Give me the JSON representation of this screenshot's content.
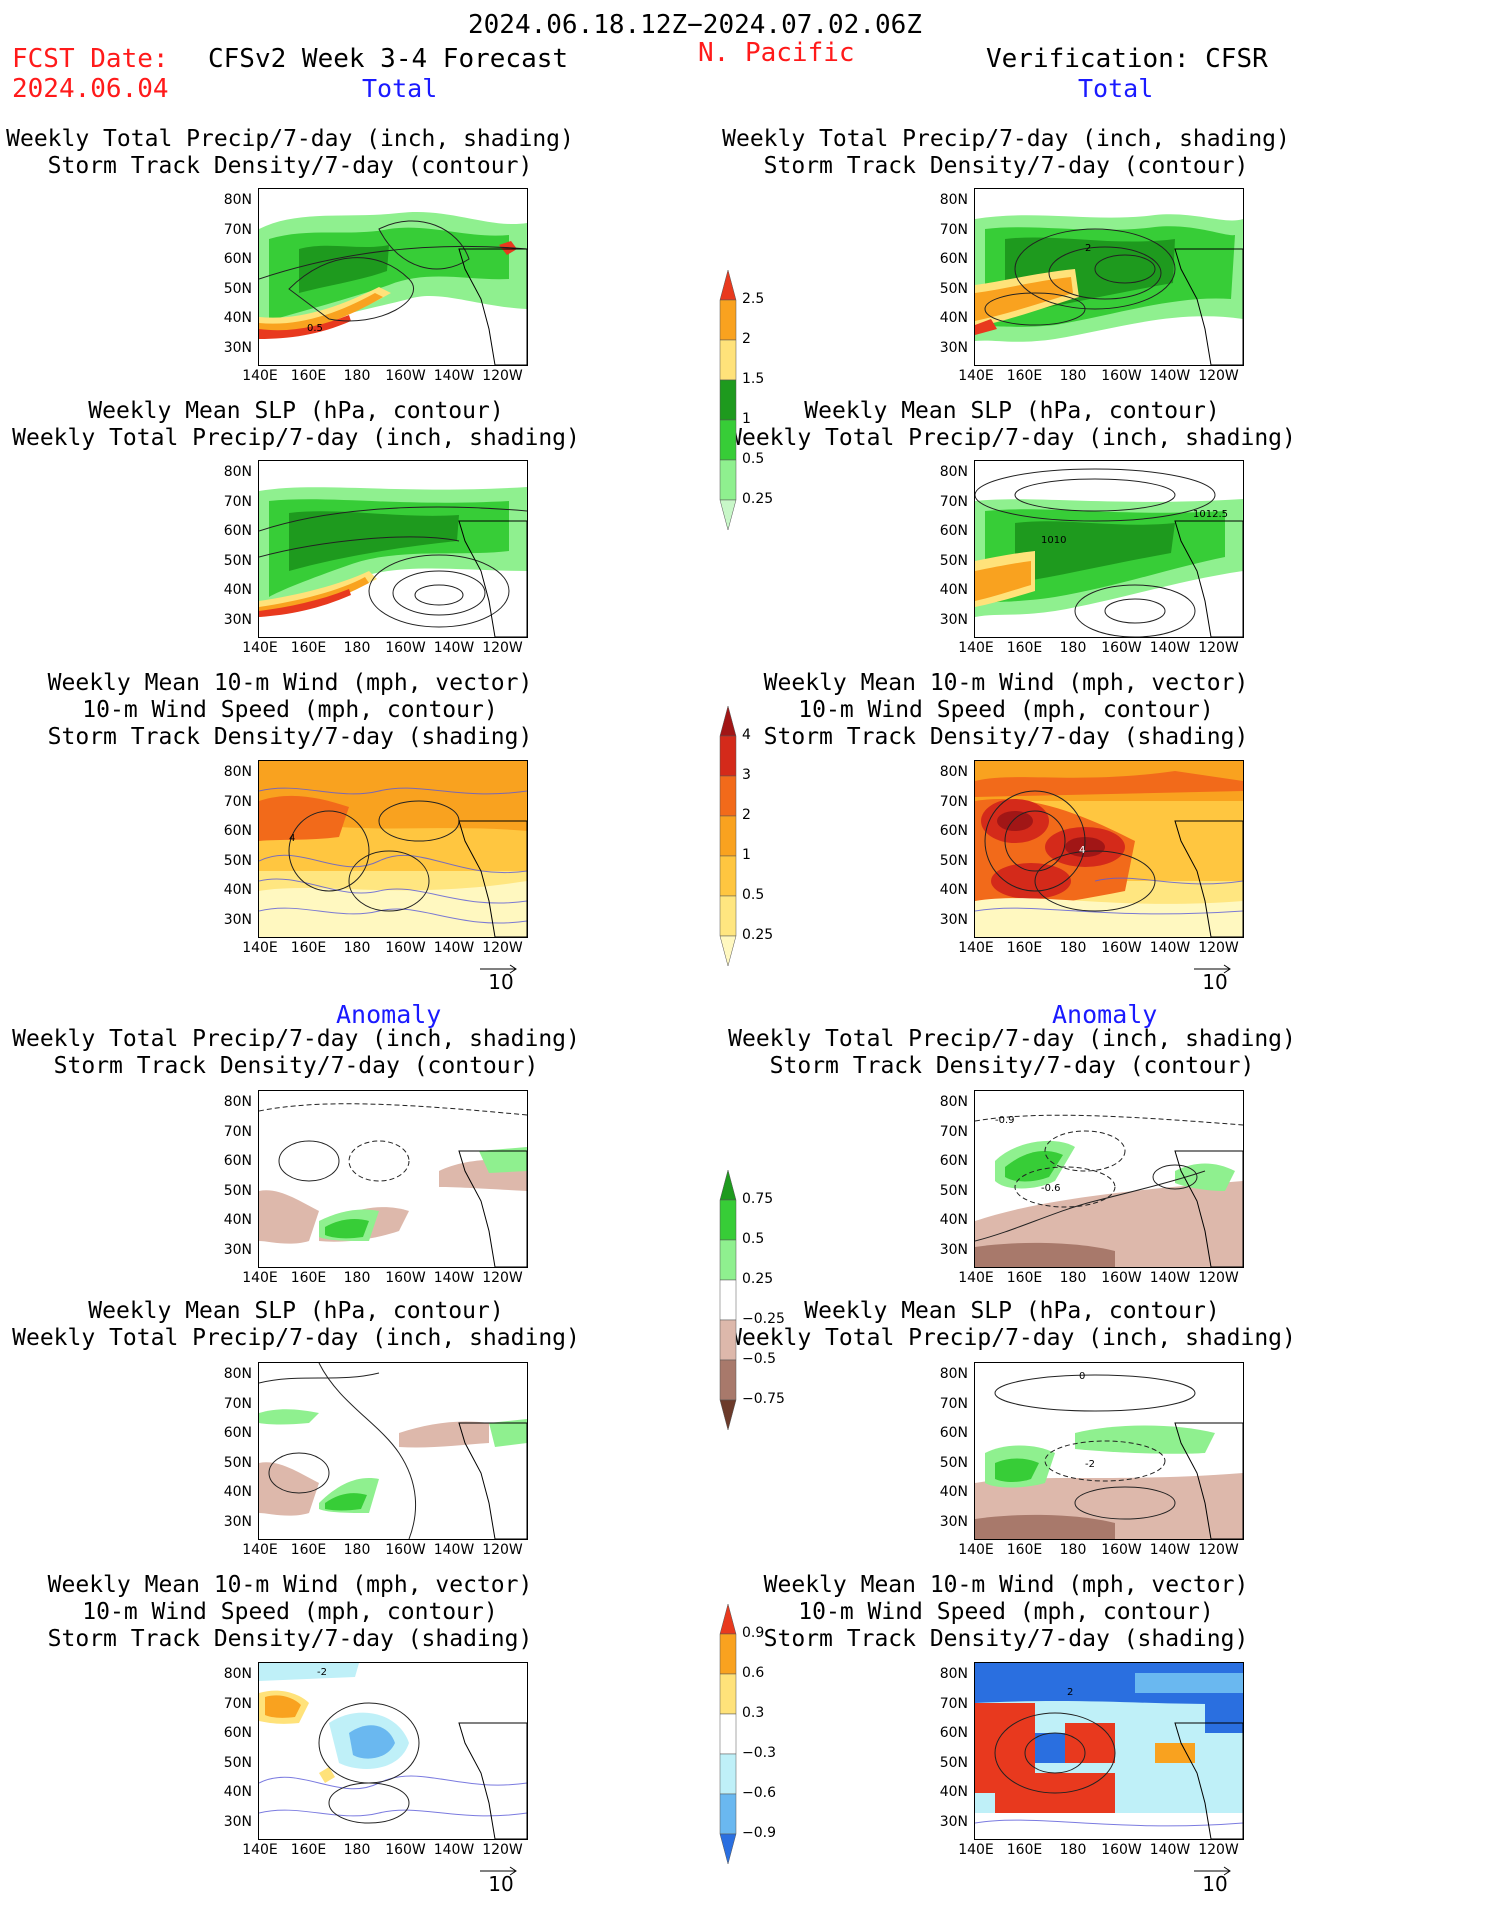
{
  "header": {
    "period": "2024.06.18.12Z−2024.07.02.06Z",
    "fcst_label": "FCST Date:",
    "fcst_date": "2024.06.04",
    "model": "CFSv2 Week 3-4 Forecast",
    "region": "N. Pacific",
    "verification": "Verification: CFSR"
  },
  "sections": {
    "total": "Total",
    "anomaly": "Anomaly"
  },
  "panel_titles": {
    "precip_storm": "Weekly Total Precip/7-day (inch, shading)\nStorm Track Density/7-day (contour)",
    "slp_precip": "Weekly Mean SLP (hPa, contour)\nWeekly Total Precip/7-day (inch, shading)",
    "wind_storm": "Weekly Mean 10-m Wind (mph, vector)\n10-m Wind Speed (mph, contour)\nStorm Track Density/7-day (shading)"
  },
  "axes": {
    "lat_labels": [
      "80N",
      "70N",
      "60N",
      "50N",
      "40N",
      "30N"
    ],
    "lon_labels": [
      "140E",
      "160E",
      "180",
      "160W",
      "140W",
      "120W"
    ]
  },
  "vector_ref": "10",
  "colorbars": {
    "precip_total": {
      "labels": [
        "2.5",
        "2",
        "1.5",
        "1",
        "0.5",
        "0.25"
      ],
      "colors": [
        "#e8391e",
        "#f9a21f",
        "#ffe27a",
        "#1e9a1e",
        "#37cd37",
        "#8ff08f",
        "#c8f7c8"
      ]
    },
    "storm_total": {
      "labels": [
        "4",
        "3",
        "2",
        "1",
        "0.5",
        "0.25"
      ],
      "colors": [
        "#a11616",
        "#d42a1a",
        "#f26a1a",
        "#f9a21f",
        "#ffc640",
        "#ffe680",
        "#fff8c0"
      ]
    },
    "precip_anom": {
      "labels": [
        "0.75",
        "0.5",
        "0.25",
        "−0.25",
        "−0.5",
        "−0.75"
      ],
      "colors": [
        "#1e9a1e",
        "#37cd37",
        "#8ff08f",
        "#ffffff",
        "#ddb8ab",
        "#a8796b",
        "#6b3a2a"
      ]
    },
    "storm_anom": {
      "labels": [
        "0.9",
        "0.6",
        "0.3",
        "−0.3",
        "−0.6",
        "−0.9"
      ],
      "colors": [
        "#e8391e",
        "#f9a21f",
        "#ffe27a",
        "#ffffff",
        "#bff0f8",
        "#6ab8f0",
        "#2a6fe0"
      ]
    }
  },
  "contour_labels": {
    "f_precip_total": "0.5",
    "v_precip_total": "2",
    "v_slp_total": "1010",
    "v_slp_total_b": "1012.5",
    "f_wind_total": "4",
    "v_wind_total": "4",
    "v_precip_anom": "-0.9",
    "v_precip_anom_b": "-0.6",
    "v_slp_anom": "-2",
    "v_slp_anom_b": "0",
    "f_wind_anom": "-2",
    "v_wind_anom": "2"
  }
}
